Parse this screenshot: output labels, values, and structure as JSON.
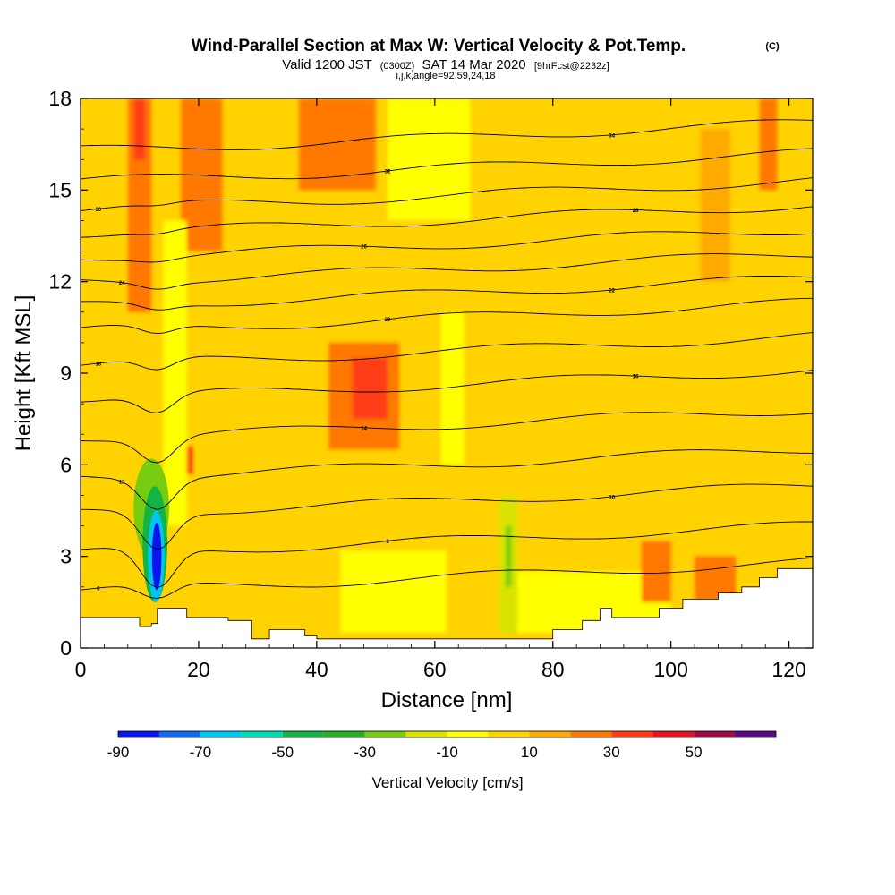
{
  "chart_data": {
    "type": "heatmap",
    "title": "Wind-Parallel Section at Max W: Vertical Velocity & Pot.Temp.",
    "title_mark": "(C)",
    "subtitle": {
      "valid": "Valid 1200 JST",
      "utc": "(0300Z)",
      "date": "SAT 14 Mar 2020",
      "forecast": "[9hrFcst@2232z]"
    },
    "grid_info": "i,j,k,angle=92,59,24,18",
    "xlabel": "Distance [nm]",
    "ylabel": "Height [Kft MSL]",
    "xlim": [
      0,
      124
    ],
    "ylim": [
      0,
      18
    ],
    "x_ticks": [
      0,
      20,
      40,
      60,
      80,
      100,
      120
    ],
    "y_ticks": [
      0,
      3,
      6,
      9,
      12,
      15,
      18
    ],
    "grid": false,
    "colorbar": {
      "label": "Vertical Velocity [cm/s]",
      "placement": "bottom",
      "tick_labels": [
        "-90",
        "-70",
        "-50",
        "-30",
        "-10",
        "10",
        "30",
        "50"
      ],
      "bins": [
        -90,
        -80,
        -70,
        -60,
        -50,
        -40,
        -30,
        -20,
        -10,
        0,
        10,
        20,
        30,
        40,
        50,
        60
      ],
      "colors": [
        "#0a14ee",
        "#0a6cf2",
        "#00c6f6",
        "#00dcb4",
        "#12b446",
        "#28b020",
        "#78cc10",
        "#d8e400",
        "#ffff00",
        "#ffd200",
        "#ffaa00",
        "#ff7800",
        "#ff3c14",
        "#e61423",
        "#a00a46",
        "#5a0a82"
      ]
    },
    "background_value": 5,
    "velocity_cells": [
      {
        "x": [
          8,
          12
        ],
        "y": [
          11,
          18
        ],
        "value": 25
      },
      {
        "x": [
          9,
          11
        ],
        "y": [
          16,
          18
        ],
        "value": 35
      },
      {
        "x": [
          17,
          24
        ],
        "y": [
          13,
          18
        ],
        "value": 25
      },
      {
        "x": [
          37,
          50
        ],
        "y": [
          15,
          18
        ],
        "value": 25
      },
      {
        "x": [
          42,
          54
        ],
        "y": [
          6.5,
          10
        ],
        "value": 25
      },
      {
        "x": [
          46,
          52
        ],
        "y": [
          7.5,
          9.5
        ],
        "value": 35
      },
      {
        "x": [
          16,
          19
        ],
        "y": [
          5.7,
          6.6
        ],
        "value": 35
      },
      {
        "x": [
          105,
          110
        ],
        "y": [
          12,
          17
        ],
        "value": 15
      },
      {
        "x": [
          115,
          118
        ],
        "y": [
          15,
          18
        ],
        "value": 25
      },
      {
        "x": [
          52,
          66
        ],
        "y": [
          14,
          18
        ],
        "value": -5
      },
      {
        "x": [
          44,
          62
        ],
        "y": [
          0.5,
          3.2
        ],
        "value": -5
      },
      {
        "x": [
          72,
          100
        ],
        "y": [
          0.5,
          2.5
        ],
        "value": -5
      },
      {
        "x": [
          14,
          18
        ],
        "y": [
          4,
          14
        ],
        "value": -5
      },
      {
        "x": [
          61,
          65
        ],
        "y": [
          6,
          11
        ],
        "value": -5
      },
      {
        "x": [
          71,
          74
        ],
        "y": [
          0.5,
          5
        ],
        "value": -12
      },
      {
        "x": [
          72,
          73
        ],
        "y": [
          2,
          4
        ],
        "value": -25
      },
      {
        "x": [
          95,
          100
        ],
        "y": [
          1.5,
          3.5
        ],
        "value": 20
      },
      {
        "x": [
          104,
          111
        ],
        "y": [
          1.5,
          3
        ],
        "value": 20
      }
    ],
    "downdraft_core": [
      {
        "x": 12.0,
        "y": 4.6,
        "rx": 3.0,
        "ry": 1.6,
        "value": -25
      },
      {
        "x": 12.6,
        "y": 3.4,
        "rx": 2.1,
        "ry": 1.9,
        "value": -45
      },
      {
        "x": 12.8,
        "y": 3.0,
        "rx": 1.4,
        "ry": 1.5,
        "value": -65
      },
      {
        "x": 12.9,
        "y": 3.0,
        "rx": 0.8,
        "ry": 1.1,
        "value": -85
      }
    ],
    "theta_contours": [
      {
        "label": "6",
        "y0": 1.9,
        "dip": 0.5
      },
      {
        "label": "8",
        "y0": 3.1,
        "dip": 1.3
      },
      {
        "label": "10",
        "y0": 4.4,
        "dip": 1.2
      },
      {
        "label": "12",
        "y0": 5.6,
        "dip": 1.0
      },
      {
        "label": "14",
        "y0": 6.9,
        "dip": 0.8
      },
      {
        "label": "16",
        "y0": 8.2,
        "dip": 0.6
      },
      {
        "label": "18",
        "y0": 9.3,
        "dip": 0.4
      },
      {
        "label": "20",
        "y0": 10.4,
        "dip": 0.3
      },
      {
        "label": "22",
        "y0": 11.2,
        "dip": 0.2
      },
      {
        "label": "24",
        "y0": 12.0,
        "dip": 0.2
      },
      {
        "label": "26",
        "y0": 12.8,
        "dip": 0.1
      },
      {
        "label": "28",
        "y0": 13.6,
        "dip": 0.1
      },
      {
        "label": "30",
        "y0": 14.4,
        "dip": 0.1
      },
      {
        "label": "32",
        "y0": 15.3,
        "dip": 0.0
      },
      {
        "label": "34",
        "y0": 16.3,
        "dip": 0.0
      }
    ],
    "terrain": {
      "x": [
        0,
        5,
        10,
        12,
        13,
        16,
        18,
        21,
        25,
        29,
        32,
        35,
        38,
        40,
        60,
        80,
        85,
        88,
        90,
        98,
        102,
        108,
        112,
        115,
        118,
        122,
        124
      ],
      "height": [
        1.0,
        1.0,
        0.7,
        0.8,
        1.3,
        1.3,
        1.0,
        1.0,
        0.9,
        0.3,
        0.6,
        0.6,
        0.4,
        0.3,
        0.3,
        0.6,
        0.9,
        1.3,
        1.0,
        1.3,
        1.6,
        1.8,
        2.0,
        2.3,
        2.6,
        2.6,
        2.3
      ]
    }
  }
}
